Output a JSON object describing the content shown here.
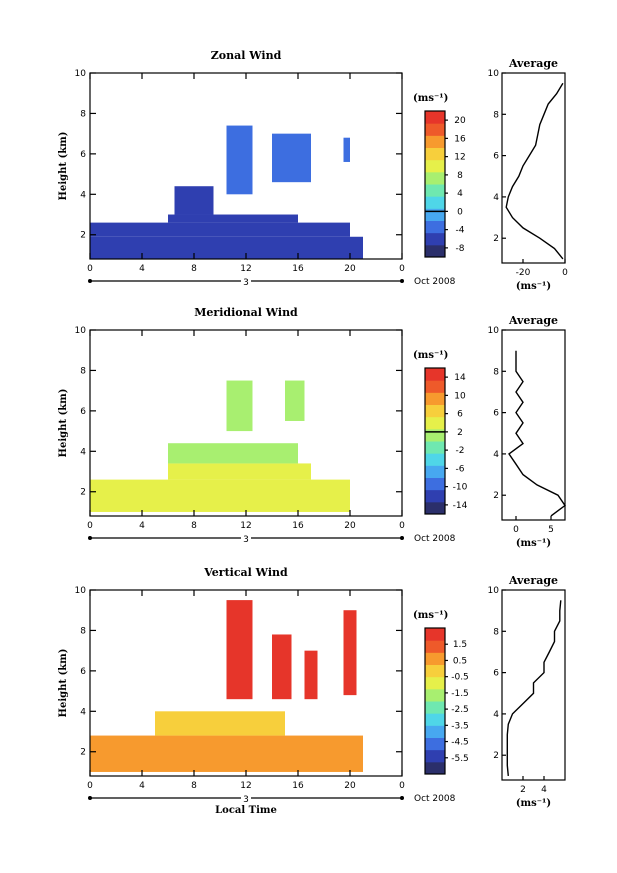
{
  "colors": {
    "zonal_scale": [
      "#2b2f6b",
      "#2f3fb0",
      "#3d6ee0",
      "#47a8f0",
      "#4fd6e8",
      "#6fe8b0",
      "#a8ef70",
      "#e6f04a",
      "#f7cf3c",
      "#f79a2e",
      "#ee5a2a",
      "#e6352a"
    ],
    "meridional_scale": [
      "#2b2f6b",
      "#2f3fb0",
      "#3d6ee0",
      "#47a8f0",
      "#4fd6e8",
      "#6fe8b0",
      "#a8ef70",
      "#e6f04a",
      "#f7cf3c",
      "#f79a2e",
      "#ee5a2a",
      "#e6352a"
    ],
    "vertical_scale": [
      "#2b2f6b",
      "#2f3fb0",
      "#3d6ee0",
      "#47a8f0",
      "#4fd6e8",
      "#6fe8b0",
      "#a8ef70",
      "#e6f04a",
      "#f7cf3c",
      "#f79a2e",
      "#ee5a2a",
      "#e6352a"
    ]
  },
  "chart_data": [
    {
      "type": "heatmap",
      "title": "Zonal Wind",
      "ylabel": "Height (km)",
      "xlabel": "",
      "xlim": [
        0,
        24
      ],
      "ylim": [
        0.8,
        10
      ],
      "x_ticks": [
        "0",
        "4",
        "8",
        "12",
        "16",
        "20",
        "0"
      ],
      "y_ticks": [
        "2",
        "4",
        "6",
        "8",
        "10"
      ],
      "date_bar_label": "3",
      "date_suffix": "Oct 2008",
      "colorbar": {
        "unit": "(ms⁻¹)",
        "ticks": [
          "20",
          "16",
          "12",
          "8",
          "4",
          "0",
          "-4",
          "-8"
        ],
        "range": [
          -10,
          22
        ],
        "marker_value": 0
      },
      "regions": [
        {
          "x": [
            0,
            21
          ],
          "y": [
            0.8,
            1.9
          ],
          "value": -7
        },
        {
          "x": [
            0,
            20
          ],
          "y": [
            1.9,
            2.6
          ],
          "value": -5
        },
        {
          "x": [
            6,
            16
          ],
          "y": [
            2.6,
            3.0
          ],
          "value": -5
        },
        {
          "x": [
            6.5,
            9.5
          ],
          "y": [
            3.0,
            4.4
          ],
          "value": -5
        },
        {
          "x": [
            10.5,
            12.5
          ],
          "y": [
            4.0,
            7.4
          ],
          "value": -4
        },
        {
          "x": [
            14,
            17
          ],
          "y": [
            4.6,
            7.0
          ],
          "value": -4
        },
        {
          "x": [
            19.5,
            20
          ],
          "y": [
            5.6,
            6.8
          ],
          "value": -4
        }
      ],
      "average_profile": {
        "title": "Average",
        "xlabel": "(ms⁻¹)",
        "x_ticks": [
          "-20",
          "0"
        ],
        "xlim": [
          -30,
          0
        ],
        "y_ticks": [
          "2",
          "4",
          "6",
          "8",
          "10"
        ],
        "ylim": [
          0.8,
          10
        ],
        "height": [
          1.0,
          1.5,
          2.0,
          2.5,
          3.0,
          3.5,
          4.0,
          4.5,
          5.0,
          5.5,
          6.0,
          6.5,
          7.0,
          7.5,
          8.0,
          8.5,
          9.0,
          9.5
        ],
        "values": [
          -1,
          -5,
          -12,
          -20,
          -25,
          -28,
          -27,
          -25,
          -22,
          -20,
          -17,
          -14,
          -13,
          -12,
          -10,
          -8,
          -4,
          -1
        ]
      }
    },
    {
      "type": "heatmap",
      "title": "Meridional Wind",
      "ylabel": "Height (km)",
      "xlabel": "",
      "xlim": [
        0,
        24
      ],
      "ylim": [
        0.8,
        10
      ],
      "x_ticks": [
        "0",
        "4",
        "8",
        "12",
        "16",
        "20",
        "0"
      ],
      "y_ticks": [
        "2",
        "4",
        "6",
        "8",
        "10"
      ],
      "date_bar_label": "3",
      "date_suffix": "Oct 2008",
      "colorbar": {
        "unit": "(ms⁻¹)",
        "ticks": [
          "14",
          "10",
          "6",
          "2",
          "-2",
          "-6",
          "-10",
          "-14"
        ],
        "range": [
          -16,
          16
        ],
        "marker_value": 2
      },
      "regions": [
        {
          "x": [
            0,
            20
          ],
          "y": [
            1.0,
            2.6
          ],
          "value": 5
        },
        {
          "x": [
            6,
            17
          ],
          "y": [
            2.6,
            3.4
          ],
          "value": 4
        },
        {
          "x": [
            6,
            16
          ],
          "y": [
            3.4,
            4.4
          ],
          "value": 0
        },
        {
          "x": [
            10.5,
            12.5
          ],
          "y": [
            5.0,
            7.5
          ],
          "value": 2
        },
        {
          "x": [
            15,
            16.5
          ],
          "y": [
            5.5,
            7.5
          ],
          "value": 2
        }
      ],
      "average_profile": {
        "title": "Average",
        "xlabel": "(ms⁻¹)",
        "x_ticks": [
          "0",
          "5"
        ],
        "xlim": [
          -2,
          7
        ],
        "y_ticks": [
          "2",
          "4",
          "6",
          "8",
          "10"
        ],
        "ylim": [
          0.8,
          10
        ],
        "height": [
          1.0,
          1.5,
          2.0,
          2.5,
          3.0,
          3.5,
          4.0,
          4.5,
          5.0,
          5.5,
          6.0,
          6.5,
          7.0,
          7.5,
          8.0,
          8.5,
          9.0
        ],
        "values": [
          5,
          7,
          6,
          3,
          1,
          0,
          -1,
          1,
          0,
          1,
          0,
          1,
          0,
          1,
          0,
          0,
          0
        ]
      }
    },
    {
      "type": "heatmap",
      "title": "Vertical Wind",
      "ylabel": "Height (km)",
      "xlabel": "Local Time",
      "xlim": [
        0,
        24
      ],
      "ylim": [
        0.8,
        10
      ],
      "x_ticks": [
        "0",
        "4",
        "8",
        "12",
        "16",
        "20",
        "0"
      ],
      "y_ticks": [
        "2",
        "4",
        "6",
        "8",
        "10"
      ],
      "date_bar_label": "3",
      "date_suffix": "Oct 2008",
      "colorbar": {
        "unit": "(ms⁻¹)",
        "ticks": [
          "1.5",
          "0.5",
          "-0.5",
          "-1.5",
          "-2.5",
          "-3.5",
          "-4.5",
          "-5.5"
        ],
        "range": [
          -6.5,
          2.5
        ]
      },
      "regions": [
        {
          "x": [
            0,
            21
          ],
          "y": [
            1.0,
            2.8
          ],
          "value": 0.3
        },
        {
          "x": [
            5,
            15
          ],
          "y": [
            2.8,
            4.0
          ],
          "value": 0.1
        },
        {
          "x": [
            10.5,
            12.5
          ],
          "y": [
            4.6,
            9.5
          ],
          "value": 2.0
        },
        {
          "x": [
            14,
            15.5
          ],
          "y": [
            4.6,
            7.8
          ],
          "value": 2.0
        },
        {
          "x": [
            16.5,
            17.5
          ],
          "y": [
            4.6,
            7.0
          ],
          "value": 2.0
        },
        {
          "x": [
            19.5,
            20.5
          ],
          "y": [
            4.8,
            9.0
          ],
          "value": 2.0
        }
      ],
      "average_profile": {
        "title": "Average",
        "xlabel": "(ms⁻¹)",
        "x_ticks": [
          "2",
          "4"
        ],
        "xlim": [
          0,
          6
        ],
        "y_ticks": [
          "2",
          "4",
          "6",
          "8",
          "10"
        ],
        "ylim": [
          0.8,
          10
        ],
        "height": [
          1.0,
          1.5,
          2.0,
          2.5,
          3.0,
          3.5,
          4.0,
          4.5,
          5.0,
          5.5,
          6.0,
          6.5,
          7.0,
          7.5,
          8.0,
          8.5,
          9.0,
          9.5
        ],
        "values": [
          0.6,
          0.5,
          0.5,
          0.5,
          0.5,
          0.6,
          1.0,
          2.0,
          3.0,
          3.0,
          4.0,
          4.0,
          4.5,
          5.0,
          5.0,
          5.5,
          5.5,
          5.6
        ]
      }
    }
  ]
}
